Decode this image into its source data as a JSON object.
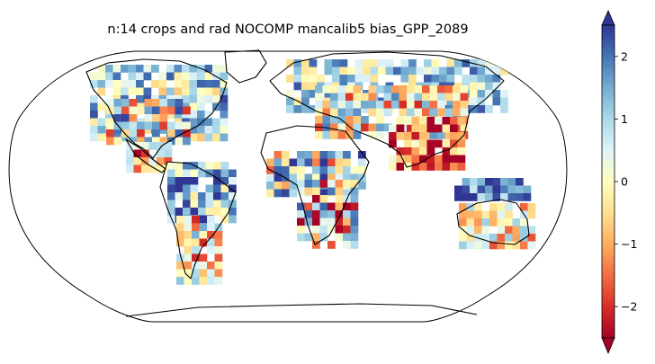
{
  "title": "n:14 crops and rad NOCOMP mancalib5 bias_GPP_2089",
  "colormap": "RdYlBu",
  "colorbar": {
    "range": [
      -2.5,
      2.5
    ],
    "extend": "both",
    "ticks": [
      {
        "value": -2,
        "label": "−2"
      },
      {
        "value": -1,
        "label": "−1"
      },
      {
        "value": 0,
        "label": "0"
      },
      {
        "value": 1,
        "label": "1"
      },
      {
        "value": 2,
        "label": "2"
      }
    ],
    "stops": [
      "#a50026",
      "#d73027",
      "#f46d43",
      "#fdae61",
      "#fee090",
      "#ffffbf",
      "#e0f3f8",
      "#abd9e9",
      "#74add1",
      "#4575b4",
      "#313695"
    ]
  },
  "map": {
    "projection": "robinson",
    "land_outline_color": "#000000",
    "ocean_color": "#ffffff"
  }
}
